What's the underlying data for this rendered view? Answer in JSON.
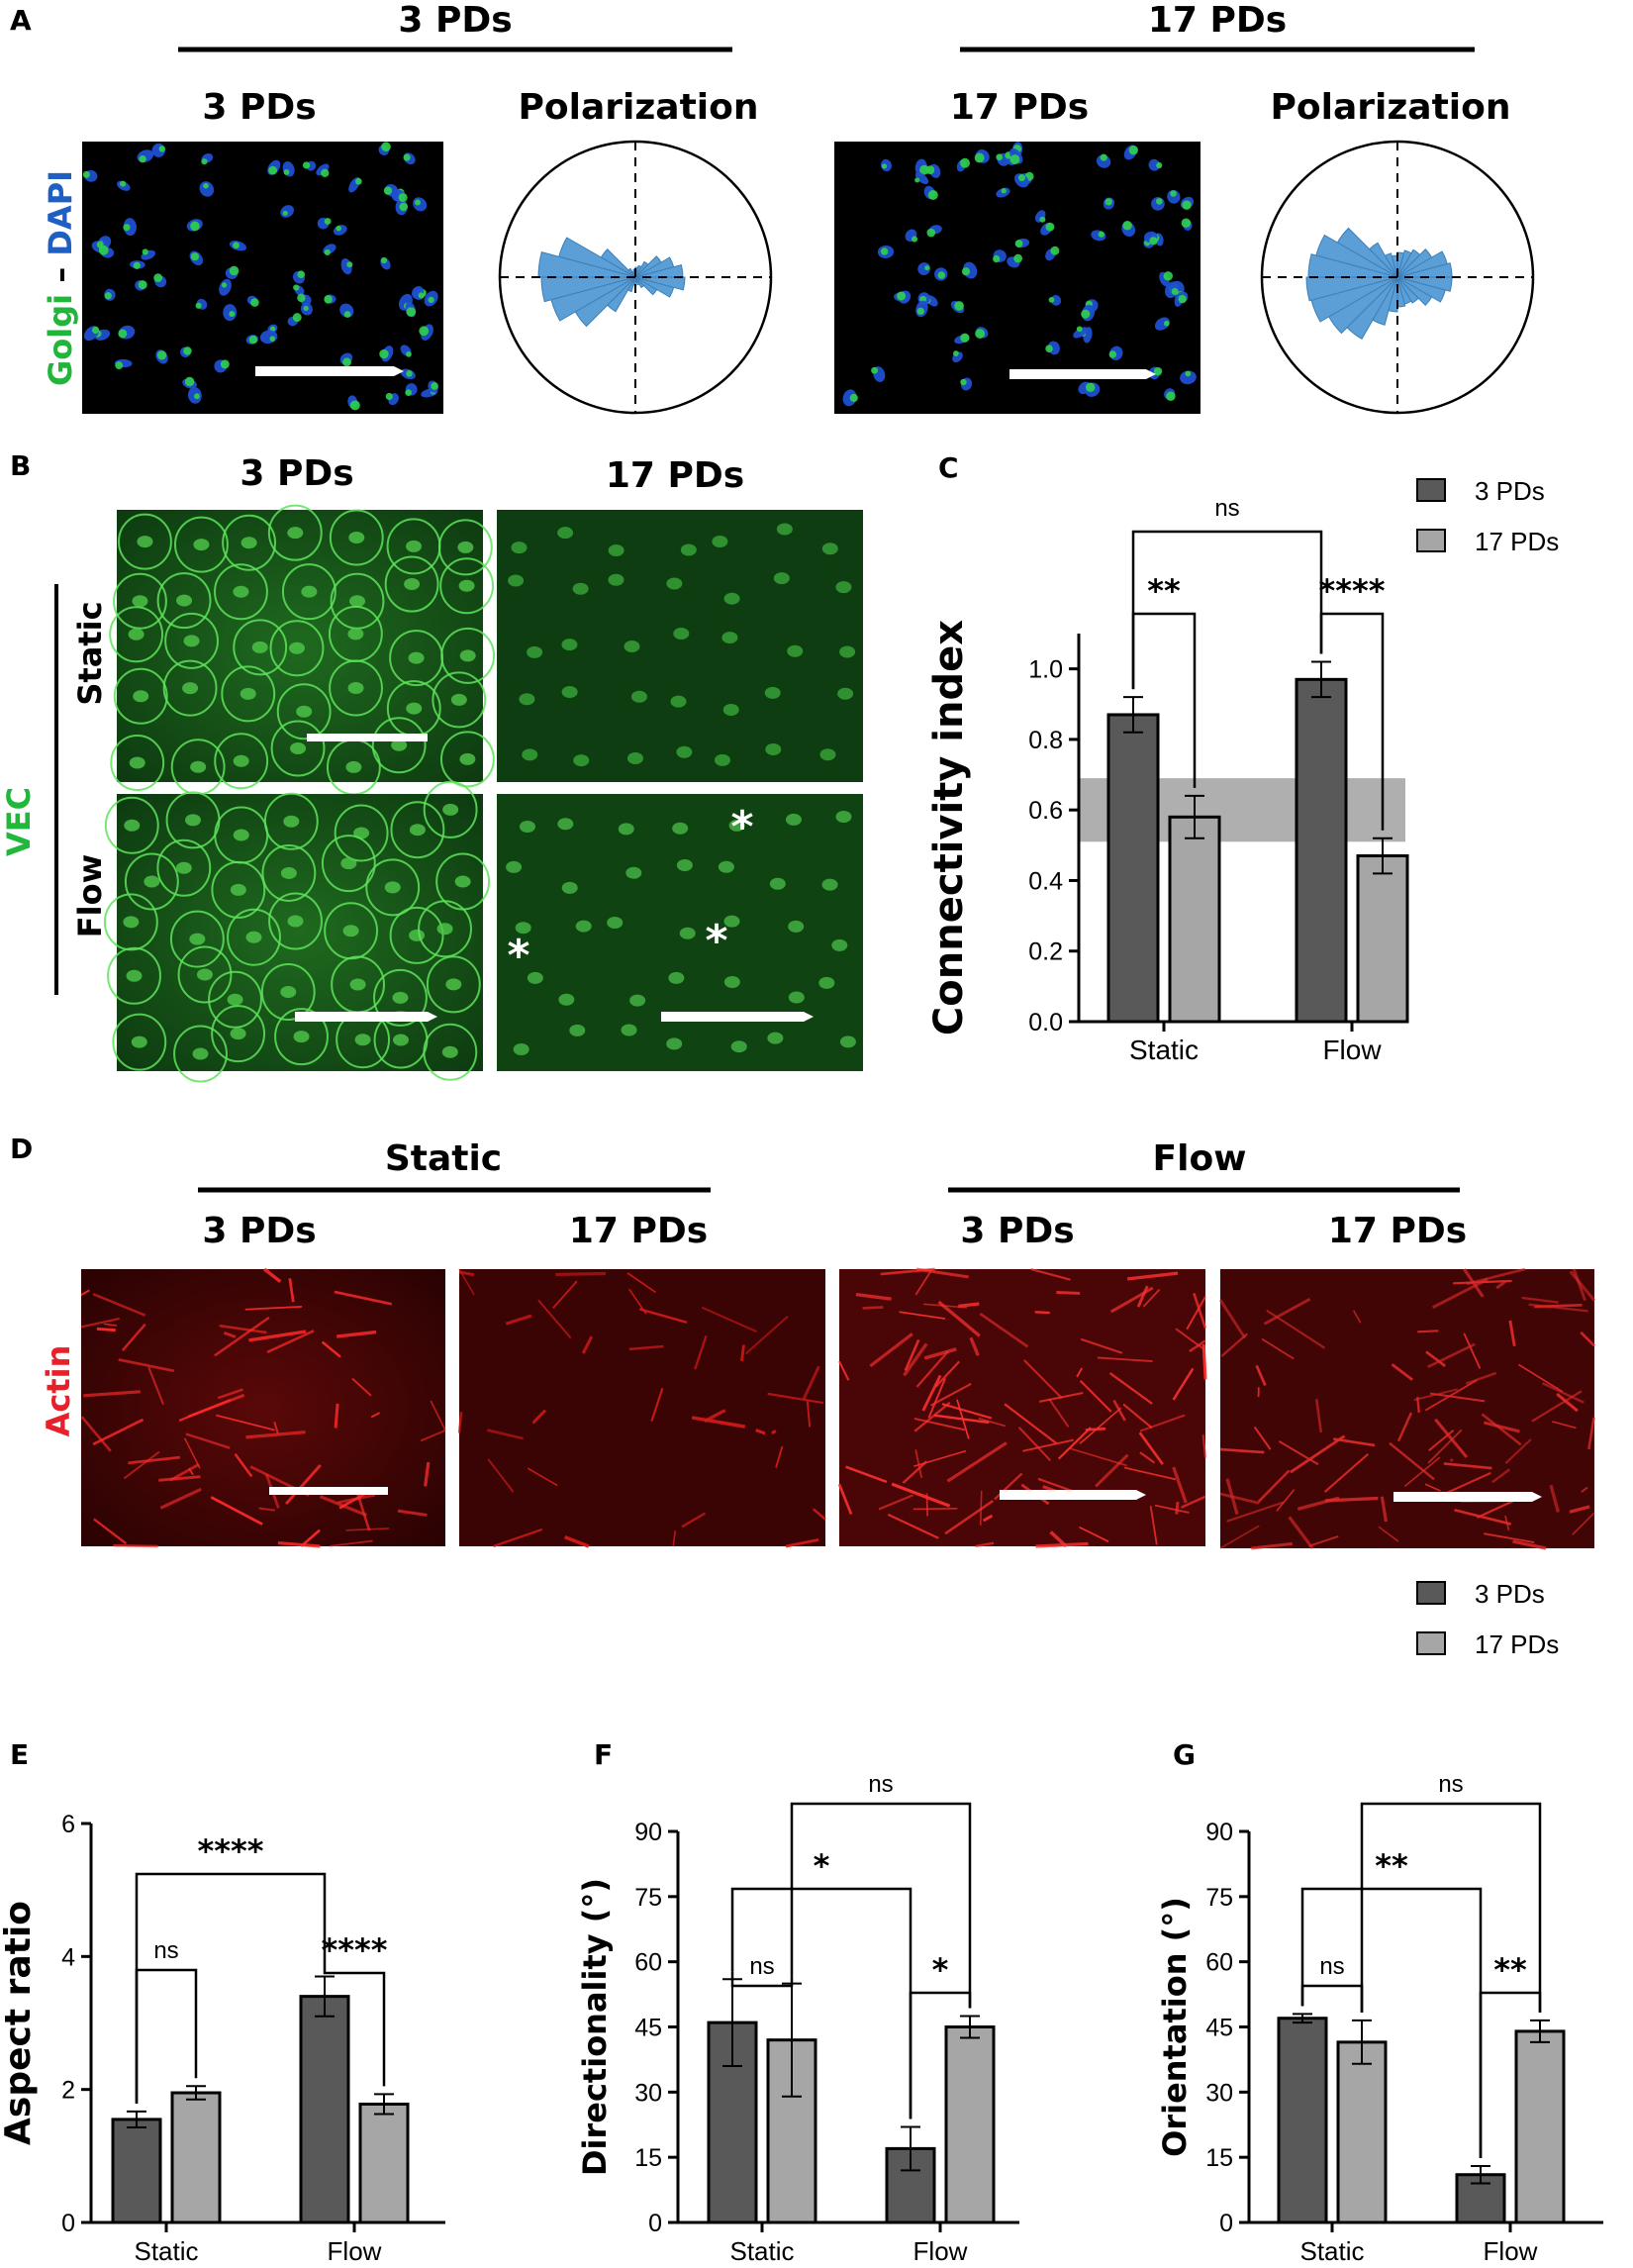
{
  "panels": {
    "a": {
      "letter": "A",
      "group_left": "3 PDs",
      "group_right": "17 PDs",
      "img_left": "3 PDs",
      "img_right": "17 PDs",
      "polar_left": "Polarization",
      "polar_right": "Polarization",
      "stain_green": "Golgi",
      "stain_sep": " – ",
      "stain_blue": "DAPI",
      "colors": {
        "green": "#22b53b",
        "blue": "#1f5fc4",
        "rose": "#5b9fd6"
      }
    },
    "b": {
      "letter": "B",
      "col_left": "3 PDs",
      "col_right": "17 PDs",
      "row_top": "Static",
      "row_bottom": "Flow",
      "stain": "VEC",
      "asterisk": "*",
      "colors": {
        "green": "#1fb83a"
      }
    },
    "c": {
      "letter": "C"
    },
    "d": {
      "letter": "D",
      "group_left": "Static",
      "group_right": "Flow",
      "cols": [
        "3 PDs",
        "17 PDs",
        "3 PDs",
        "17 PDs"
      ],
      "stain": "Actin",
      "colors": {
        "red": "#e8202a"
      }
    },
    "e": {
      "letter": "E"
    },
    "f": {
      "letter": "F"
    },
    "g": {
      "letter": "G"
    }
  },
  "legends": {
    "c": {
      "items": [
        "3 PDs",
        "17 PDs"
      ],
      "colors": [
        "#595959",
        "#a6a6a6"
      ]
    },
    "efg": {
      "items": [
        "3 PDs",
        "17 PDs"
      ],
      "colors": [
        "#595959",
        "#a6a6a6"
      ]
    }
  },
  "chart_data": [
    {
      "id": "c",
      "type": "bar",
      "categories": [
        "Static",
        "Flow"
      ],
      "series": [
        {
          "name": "3 PDs",
          "values": [
            0.87,
            0.97
          ],
          "errors": [
            0.05,
            0.05
          ]
        },
        {
          "name": "17 PDs",
          "values": [
            0.58,
            0.47
          ],
          "errors": [
            0.06,
            0.05
          ]
        }
      ],
      "ylabel": "Connectivity index",
      "ylim": [
        0,
        1.1
      ],
      "yticks": [
        "0.0",
        "0.2",
        "0.4",
        "0.6",
        "0.8",
        "1.0"
      ],
      "shaded_band": [
        0.51,
        0.69
      ],
      "significance": [
        {
          "from": "Static:3 PDs",
          "to": "Static:17 PDs",
          "label": "**"
        },
        {
          "from": "Flow:3 PDs",
          "to": "Flow:17 PDs",
          "label": "****"
        },
        {
          "from": "Static:3 PDs",
          "to": "Flow:3 PDs",
          "label": "ns"
        }
      ]
    },
    {
      "id": "e",
      "type": "bar",
      "categories": [
        "Static",
        "Flow"
      ],
      "series": [
        {
          "name": "3 PDs",
          "values": [
            1.55,
            3.4
          ],
          "errors": [
            0.12,
            0.3
          ]
        },
        {
          "name": "17 PDs",
          "values": [
            1.95,
            1.78
          ],
          "errors": [
            0.1,
            0.15
          ]
        }
      ],
      "ylabel": "Aspect ratio",
      "ylim": [
        0,
        6
      ],
      "yticks": [
        "0",
        "2",
        "4",
        "6"
      ],
      "significance": [
        {
          "from": "Static:3 PDs",
          "to": "Static:17 PDs",
          "label": "ns"
        },
        {
          "from": "Flow:3 PDs",
          "to": "Flow:17 PDs",
          "label": "****"
        },
        {
          "from": "Static:3 PDs",
          "to": "Flow:3 PDs",
          "label": "****"
        }
      ]
    },
    {
      "id": "f",
      "type": "bar",
      "categories": [
        "Static",
        "Flow"
      ],
      "series": [
        {
          "name": "3 PDs",
          "values": [
            46,
            17
          ],
          "errors": [
            10,
            5
          ]
        },
        {
          "name": "17 PDs",
          "values": [
            42,
            45
          ],
          "errors": [
            13,
            2.5
          ]
        }
      ],
      "ylabel": "Directionality (°)",
      "ylim": [
        0,
        90
      ],
      "yticks": [
        "0",
        "15",
        "30",
        "45",
        "60",
        "75",
        "90"
      ],
      "significance": [
        {
          "from": "Static:3 PDs",
          "to": "Static:17 PDs",
          "label": "ns"
        },
        {
          "from": "Flow:3 PDs",
          "to": "Flow:17 PDs",
          "label": "*"
        },
        {
          "from": "Static:3 PDs",
          "to": "Flow:3 PDs",
          "label": "*"
        },
        {
          "from": "Static:17 PDs",
          "to": "Flow:17 PDs",
          "label": "ns"
        }
      ]
    },
    {
      "id": "g",
      "type": "bar",
      "categories": [
        "Static",
        "Flow"
      ],
      "series": [
        {
          "name": "3 PDs",
          "values": [
            47,
            11
          ],
          "errors": [
            1,
            2
          ]
        },
        {
          "name": "17 PDs",
          "values": [
            41.5,
            44
          ],
          "errors": [
            5,
            2.5
          ]
        }
      ],
      "ylabel": "Orientation (°)",
      "ylim": [
        0,
        90
      ],
      "yticks": [
        "0",
        "15",
        "30",
        "45",
        "60",
        "75",
        "90"
      ],
      "significance": [
        {
          "from": "Static:3 PDs",
          "to": "Static:17 PDs",
          "label": "ns"
        },
        {
          "from": "Flow:3 PDs",
          "to": "Flow:17 PDs",
          "label": "**"
        },
        {
          "from": "Static:3 PDs",
          "to": "Flow:3 PDs",
          "label": "**"
        },
        {
          "from": "Static:17 PDs",
          "to": "Flow:17 PDs",
          "label": "ns"
        }
      ]
    }
  ]
}
